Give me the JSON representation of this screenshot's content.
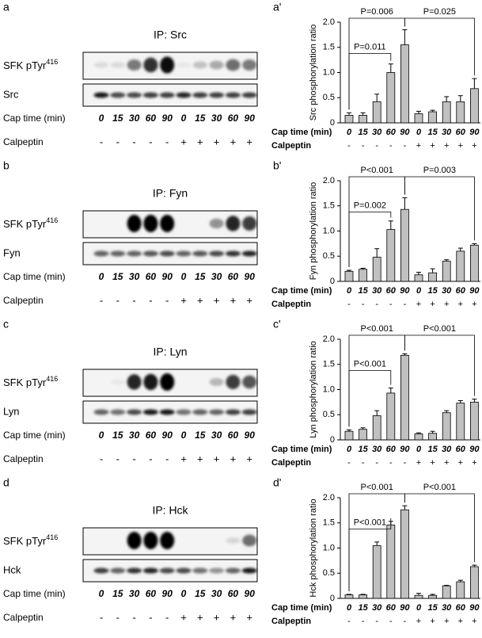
{
  "blots": [
    {
      "label": "a",
      "title": "IP: Src",
      "row1": {
        "text": "SFK pTyr",
        "sup": "416"
      },
      "row2": "Src",
      "cap_label": "Cap time (min)",
      "calpeptin_label": "Calpeptin",
      "lanes": [
        "0",
        "15",
        "30",
        "60",
        "90",
        "0",
        "15",
        "30",
        "60",
        "90"
      ],
      "calpeptin": [
        "-",
        "-",
        "-",
        "-",
        "-",
        "+",
        "+",
        "+",
        "+",
        "+"
      ]
    },
    {
      "label": "b",
      "title": "IP: Fyn",
      "row1": {
        "text": "SFK pTyr",
        "sup": "416"
      },
      "row2": "Fyn",
      "cap_label": "Cap time (min)",
      "calpeptin_label": "Calpeptin",
      "lanes": [
        "0",
        "15",
        "30",
        "60",
        "90",
        "0",
        "15",
        "30",
        "60",
        "90"
      ],
      "calpeptin": [
        "-",
        "-",
        "-",
        "-",
        "-",
        "+",
        "+",
        "+",
        "+",
        "+"
      ]
    },
    {
      "label": "c",
      "title": "IP: Lyn",
      "row1": {
        "text": "SFK pTyr",
        "sup": "416"
      },
      "row2": "Lyn",
      "cap_label": "Cap time (min)",
      "calpeptin_label": "Calpeptin",
      "lanes": [
        "0",
        "15",
        "30",
        "60",
        "90",
        "0",
        "15",
        "30",
        "60",
        "90"
      ],
      "calpeptin": [
        "-",
        "-",
        "-",
        "-",
        "-",
        "+",
        "+",
        "+",
        "+",
        "+"
      ]
    },
    {
      "label": "d",
      "title": "IP: Hck",
      "row1": {
        "text": "SFK pTyr",
        "sup": "416"
      },
      "row2": "Hck",
      "cap_label": "Cap time (min)",
      "calpeptin_label": "Calpeptin",
      "lanes": [
        "0",
        "15",
        "30",
        "60",
        "90",
        "0",
        "15",
        "30",
        "60",
        "90"
      ],
      "calpeptin": [
        "-",
        "-",
        "-",
        "-",
        "-",
        "+",
        "+",
        "+",
        "+",
        "+"
      ]
    }
  ],
  "chart_data": [
    {
      "type": "bar",
      "label": "a'",
      "y_label": "Src phosphorylation ratio",
      "x_label": "Cap time (min)",
      "calpeptin_label": "Calpeptin",
      "categories": [
        "0",
        "15",
        "30",
        "60",
        "90",
        "0",
        "15",
        "30",
        "60",
        "90"
      ],
      "calpeptin": [
        "-",
        "-",
        "-",
        "-",
        "-",
        "+",
        "+",
        "+",
        "+",
        "+"
      ],
      "values": [
        0.15,
        0.15,
        0.42,
        1.0,
        1.55,
        0.18,
        0.22,
        0.42,
        0.42,
        0.68
      ],
      "errors": [
        0.05,
        0.05,
        0.15,
        0.17,
        0.3,
        0.05,
        0.03,
        0.1,
        0.12,
        0.2
      ],
      "color": "#c0c0c0",
      "ylim": [
        0,
        2
      ],
      "yticks": [
        0,
        0.5,
        {
          "value": 1,
          "label": "1.0"
        },
        1.5,
        {
          "value": 2,
          "label": "2.0"
        }
      ],
      "annotations": [
        "P=0.006",
        "P=0.011",
        "P=0.025"
      ]
    },
    {
      "type": "bar",
      "label": "b'",
      "y_label": "Fyn phosphorylation ratio",
      "x_label": "Cap time (min)",
      "calpeptin_label": "Calpeptin",
      "categories": [
        "0",
        "15",
        "30",
        "60",
        "90",
        "0",
        "15",
        "30",
        "60",
        "90"
      ],
      "calpeptin": [
        "-",
        "-",
        "-",
        "-",
        "-",
        "+",
        "+",
        "+",
        "+",
        "+"
      ],
      "values": [
        0.2,
        0.24,
        0.48,
        1.03,
        1.43,
        0.13,
        0.17,
        0.4,
        0.6,
        0.72
      ],
      "errors": [
        0.02,
        0.02,
        0.17,
        0.17,
        0.23,
        0.05,
        0.08,
        0.03,
        0.06,
        0.03
      ],
      "color": "#c0c0c0",
      "ylim": [
        0,
        2
      ],
      "yticks": [
        0,
        0.5,
        {
          "value": 1,
          "label": "1.0"
        },
        1.5,
        {
          "value": 2,
          "label": "2.0"
        }
      ],
      "annotations": [
        "P<0.001",
        "P=0.002",
        "P=0.003"
      ]
    },
    {
      "type": "bar",
      "label": "c'",
      "y_label": "Lyn phosphorylation ratio",
      "x_label": "Cap time (min)",
      "calpeptin_label": "Calpeptin",
      "categories": [
        "0",
        "15",
        "30",
        "60",
        "90",
        "0",
        "15",
        "30",
        "60",
        "90"
      ],
      "calpeptin": [
        "-",
        "-",
        "-",
        "-",
        "-",
        "+",
        "+",
        "+",
        "+",
        "+"
      ],
      "values": [
        0.17,
        0.21,
        0.48,
        0.93,
        1.68,
        0.12,
        0.13,
        0.54,
        0.73,
        0.75
      ],
      "errors": [
        0.03,
        0.03,
        0.1,
        0.1,
        0.03,
        0.02,
        0.04,
        0.04,
        0.05,
        0.06
      ],
      "color": "#c0c0c0",
      "ylim": [
        0,
        2
      ],
      "yticks": [
        0,
        0.5,
        {
          "value": 1,
          "label": "1.0"
        },
        1.5,
        {
          "value": 2,
          "label": "2.0"
        }
      ],
      "annotations": [
        "P<0.001",
        "P<0.001",
        "P<0.001"
      ]
    },
    {
      "type": "bar",
      "label": "d'",
      "y_label": "Hck phosphorylation ratio",
      "x_label": "Cap time (min)",
      "calpeptin_label": "Calpeptin",
      "categories": [
        "0",
        "15",
        "30",
        "60",
        "90",
        "0",
        "15",
        "30",
        "60",
        "90"
      ],
      "calpeptin": [
        "-",
        "-",
        "-",
        "-",
        "-",
        "+",
        "+",
        "+",
        "+",
        "+"
      ],
      "values": [
        0.07,
        0.07,
        1.05,
        1.46,
        1.76,
        0.06,
        0.06,
        0.25,
        0.33,
        0.63
      ],
      "errors": [
        0.01,
        0.01,
        0.07,
        0.07,
        0.08,
        0.04,
        0.02,
        0.01,
        0.03,
        0.03
      ],
      "color": "#c0c0c0",
      "ylim": [
        0,
        2
      ],
      "yticks": [
        0,
        0.5,
        {
          "value": 1,
          "label": "1.0"
        },
        1.5,
        {
          "value": 2,
          "label": "2.0"
        }
      ],
      "annotations": [
        "P<0.001",
        "P<0.001",
        "P<0.001"
      ]
    }
  ]
}
